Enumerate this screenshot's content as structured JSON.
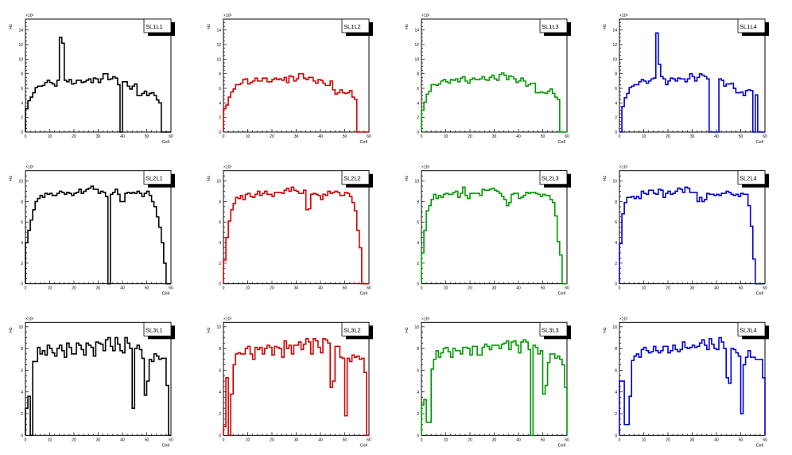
{
  "canvas": {
    "x_axis_title": "Cell",
    "y_axis_title": "Hz",
    "y_exponent": "×10³"
  },
  "colors": {
    "L1": "#000000",
    "L2": "#d00000",
    "L3": "#009900",
    "L4": "#0000cc"
  },
  "chart_data": [
    {
      "type": "bar",
      "title": "SL1L1",
      "color": "#000000",
      "xlim": [
        0,
        60
      ],
      "ylim": [
        0,
        15.5
      ],
      "xticks": [
        0,
        10,
        20,
        30,
        40,
        50,
        60
      ],
      "yticks": [
        0,
        2,
        4,
        6,
        8,
        10,
        12,
        14
      ],
      "xlabel": "Cell",
      "ylabel": "Hz",
      "yscale": "x10^3",
      "values": [
        3.2,
        4.3,
        4.8,
        5.4,
        6.1,
        6.3,
        6.3,
        6.4,
        6.8,
        7.1,
        6.8,
        6.6,
        6.3,
        7.1,
        13.0,
        12.2,
        7.1,
        6.9,
        7.2,
        6.6,
        6.7,
        7.1,
        7.1,
        6.8,
        6.9,
        7.1,
        7.3,
        6.8,
        7.4,
        7.3,
        6.8,
        7.3,
        8.0,
        8.0,
        7.2,
        7.3,
        7.6,
        7.4,
        6.5,
        0,
        6.9,
        6.9,
        6.3,
        5.9,
        6.3,
        6.6,
        5.0,
        5.0,
        5.3,
        5.6,
        5.0,
        5.3,
        5.4,
        5.0,
        4.4,
        4.0,
        0,
        0,
        0,
        0
      ]
    },
    {
      "type": "bar",
      "title": "SL1L2",
      "color": "#d00000",
      "xlim": [
        0,
        60
      ],
      "ylim": [
        0,
        15.5
      ],
      "xticks": [
        0,
        10,
        20,
        30,
        40,
        50,
        60
      ],
      "yticks": [
        0,
        2,
        4,
        6,
        8,
        10,
        12,
        14
      ],
      "xlabel": "Cell",
      "ylabel": "Hz",
      "yscale": "x10^3",
      "values": [
        3.2,
        3.7,
        4.8,
        5.5,
        5.9,
        6.5,
        6.5,
        6.7,
        7.2,
        7.3,
        6.6,
        6.8,
        7.0,
        7.4,
        7.0,
        7.0,
        7.4,
        7.4,
        6.9,
        6.9,
        7.2,
        7.4,
        7.2,
        7.3,
        7.1,
        7.5,
        6.8,
        7.7,
        7.6,
        7.0,
        7.3,
        8.0,
        8.0,
        7.4,
        7.2,
        7.5,
        7.5,
        7.0,
        6.7,
        7.2,
        7.1,
        6.7,
        6.4,
        6.4,
        7.0,
        5.8,
        5.2,
        5.4,
        5.8,
        5.4,
        5.3,
        5.4,
        5.7,
        4.8,
        4.5,
        0,
        0,
        0,
        0,
        0
      ]
    },
    {
      "type": "bar",
      "title": "SL1L3",
      "color": "#009900",
      "xlim": [
        0,
        60
      ],
      "ylim": [
        0,
        15.5
      ],
      "xticks": [
        0,
        10,
        20,
        30,
        40,
        50,
        60
      ],
      "yticks": [
        0,
        2,
        4,
        6,
        8,
        10,
        12,
        14
      ],
      "xlabel": "Cell",
      "ylabel": "Hz",
      "yscale": "x10^3",
      "values": [
        3.0,
        4.1,
        5.2,
        5.6,
        6.5,
        6.5,
        6.4,
        6.6,
        7.0,
        7.2,
        6.9,
        6.7,
        7.2,
        7.1,
        7.3,
        6.9,
        7.4,
        7.6,
        7.0,
        6.7,
        7.2,
        7.4,
        7.2,
        7.2,
        7.3,
        7.6,
        7.2,
        7.1,
        7.5,
        7.8,
        7.3,
        7.1,
        7.9,
        8.1,
        7.8,
        7.2,
        7.7,
        7.6,
        7.3,
        6.8,
        7.0,
        7.4,
        7.0,
        6.3,
        6.5,
        6.7,
        6.7,
        5.4,
        5.4,
        5.5,
        5.4,
        5.3,
        5.6,
        5.9,
        5.3,
        4.8,
        4.5,
        0,
        0,
        0
      ]
    },
    {
      "type": "bar",
      "title": "SL1L4",
      "color": "#0000cc",
      "xlim": [
        0,
        60
      ],
      "ylim": [
        0,
        15.5
      ],
      "xticks": [
        0,
        10,
        20,
        30,
        40,
        50,
        60
      ],
      "yticks": [
        0,
        2,
        4,
        6,
        8,
        10,
        12,
        14
      ],
      "xlabel": "Cell",
      "ylabel": "Hz",
      "yscale": "x10^3",
      "values": [
        0,
        3.5,
        4.7,
        5.3,
        6.1,
        6.3,
        6.5,
        6.5,
        6.9,
        7.2,
        7.0,
        6.7,
        7.0,
        7.3,
        7.4,
        13.6,
        9.3,
        7.6,
        7.3,
        6.5,
        7.0,
        7.4,
        7.3,
        7.0,
        7.4,
        7.3,
        7.3,
        6.9,
        7.3,
        8.0,
        7.6,
        7.0,
        7.5,
        8.0,
        7.8,
        7.6,
        7.3,
        0,
        0,
        0,
        0,
        7.3,
        7.1,
        6.3,
        6.6,
        6.6,
        6.7,
        6.0,
        5.4,
        5.4,
        5.5,
        5.0,
        5.7,
        5.8,
        5.7,
        0,
        5.1,
        0,
        0,
        0
      ]
    },
    {
      "type": "bar",
      "title": "SL2L1",
      "color": "#000000",
      "xlim": [
        0,
        60
      ],
      "ylim": [
        0,
        11
      ],
      "xticks": [
        0,
        10,
        20,
        30,
        40,
        50,
        60
      ],
      "yticks": [
        0,
        2,
        4,
        6,
        8,
        10
      ],
      "xlabel": "Cell",
      "ylabel": "Hz",
      "yscale": "x10^3",
      "values": [
        4.0,
        5.2,
        6.2,
        7.2,
        8.0,
        8.3,
        8.6,
        8.4,
        8.8,
        8.7,
        8.8,
        8.6,
        8.6,
        8.8,
        9.0,
        8.9,
        8.7,
        8.9,
        8.8,
        8.6,
        8.8,
        8.9,
        9.2,
        8.8,
        9.0,
        9.2,
        9.3,
        9.5,
        9.2,
        9.2,
        8.8,
        9.0,
        8.9,
        8.5,
        0,
        8.7,
        8.9,
        9.2,
        8.7,
        8.0,
        8.0,
        8.8,
        8.9,
        8.8,
        8.9,
        8.8,
        9.0,
        8.8,
        8.5,
        8.8,
        9.0,
        8.6,
        8.0,
        7.5,
        6.5,
        5.5,
        4.0,
        2.0,
        0,
        0
      ]
    },
    {
      "type": "bar",
      "title": "SL2L2",
      "color": "#d00000",
      "xlim": [
        0,
        60
      ],
      "ylim": [
        0,
        11
      ],
      "xticks": [
        0,
        10,
        20,
        30,
        40,
        50,
        60
      ],
      "yticks": [
        0,
        2,
        4,
        6,
        8,
        10
      ],
      "xlabel": "Cell",
      "ylabel": "Hz",
      "yscale": "x10^3",
      "values": [
        2.3,
        4.5,
        6.1,
        7.2,
        7.8,
        8.4,
        8.3,
        8.6,
        8.2,
        8.7,
        8.8,
        8.5,
        8.4,
        8.7,
        9.0,
        8.6,
        8.8,
        9.0,
        8.7,
        8.7,
        8.5,
        8.9,
        8.9,
        8.9,
        8.8,
        9.1,
        9.3,
        9.0,
        9.4,
        9.1,
        9.0,
        8.8,
        8.8,
        9.1,
        7.2,
        7.3,
        8.7,
        8.8,
        8.7,
        8.6,
        8.2,
        8.7,
        8.6,
        9.0,
        8.8,
        8.9,
        9.0,
        8.9,
        8.6,
        8.6,
        8.9,
        8.8,
        8.5,
        7.9,
        7.1,
        5.2,
        3.5,
        0,
        0,
        0
      ]
    },
    {
      "type": "bar",
      "title": "SL2L3",
      "color": "#009900",
      "xlim": [
        0,
        60
      ],
      "ylim": [
        0,
        11
      ],
      "xticks": [
        0,
        10,
        20,
        30,
        40,
        50,
        60
      ],
      "yticks": [
        0,
        2,
        4,
        6,
        8,
        10
      ],
      "xlabel": "Cell",
      "ylabel": "Hz",
      "yscale": "x10^3",
      "values": [
        3.0,
        5.2,
        7.1,
        7.6,
        8.2,
        8.7,
        8.3,
        8.6,
        8.4,
        8.7,
        8.8,
        8.7,
        8.7,
        8.9,
        9.0,
        8.4,
        8.8,
        9.4,
        8.6,
        8.3,
        8.8,
        8.8,
        8.8,
        8.8,
        8.6,
        9.2,
        9.1,
        9.1,
        9.2,
        9.3,
        9.1,
        9.0,
        8.8,
        8.5,
        8.2,
        7.6,
        7.9,
        8.7,
        8.8,
        8.8,
        8.3,
        8.4,
        8.6,
        8.9,
        8.8,
        8.9,
        8.9,
        8.8,
        8.7,
        8.5,
        8.7,
        8.6,
        8.6,
        8.2,
        7.9,
        6.6,
        4.1,
        2.8,
        0,
        0
      ]
    },
    {
      "type": "bar",
      "title": "SL2L4",
      "color": "#0000cc",
      "xlim": [
        0,
        60
      ],
      "ylim": [
        0,
        11
      ],
      "xticks": [
        0,
        10,
        20,
        30,
        40,
        50,
        60
      ],
      "yticks": [
        0,
        2,
        4,
        6,
        8,
        10
      ],
      "xlabel": "Cell",
      "ylabel": "Hz",
      "yscale": "x10^3",
      "values": [
        3.9,
        6.8,
        7.9,
        8.4,
        8.4,
        8.5,
        8.3,
        8.5,
        8.3,
        9.0,
        8.8,
        8.7,
        9.1,
        9.1,
        8.8,
        8.7,
        9.2,
        9.1,
        8.4,
        8.8,
        9.0,
        8.7,
        8.8,
        9.0,
        9.3,
        9.2,
        8.9,
        9.4,
        9.3,
        8.9,
        8.9,
        8.9,
        8.0,
        8.4,
        8.0,
        8.2,
        8.8,
        8.7,
        8.7,
        8.6,
        8.7,
        8.6,
        8.8,
        8.8,
        9.0,
        8.9,
        8.7,
        8.6,
        8.7,
        8.5,
        8.8,
        8.7,
        8.7,
        7.6,
        5.6,
        2.4,
        0,
        0,
        0,
        0
      ]
    },
    {
      "type": "bar",
      "title": "SL3L1",
      "color": "#000000",
      "xlim": [
        0,
        60
      ],
      "ylim": [
        0,
        10.4
      ],
      "xticks": [
        0,
        10,
        20,
        30,
        40,
        50,
        60
      ],
      "yticks": [
        0,
        2,
        4,
        6,
        8,
        10
      ],
      "xlabel": "Cell",
      "ylabel": "Hz",
      "yscale": "x10^3",
      "values": [
        2.5,
        3.6,
        0,
        6.8,
        6.8,
        8.1,
        7.5,
        7.8,
        7.4,
        8.3,
        8.0,
        7.6,
        7.3,
        8.0,
        8.3,
        7.8,
        7.2,
        8.5,
        8.1,
        7.5,
        7.5,
        8.5,
        8.3,
        7.9,
        7.4,
        8.5,
        8.3,
        8.1,
        7.3,
        8.6,
        8.5,
        8.4,
        7.8,
        8.8,
        9.0,
        8.2,
        7.8,
        9.0,
        8.4,
        7.8,
        7.6,
        9.0,
        8.5,
        8.0,
        2.5,
        8.0,
        8.3,
        7.9,
        7.1,
        3.7,
        5.0,
        7.0,
        6.8,
        7.5,
        7.3,
        7.0,
        7.1,
        7.1,
        4.6,
        0
      ]
    },
    {
      "type": "bar",
      "title": "SL3L2",
      "color": "#d00000",
      "xlim": [
        0,
        60
      ],
      "ylim": [
        0,
        10.4
      ],
      "xticks": [
        0,
        10,
        20,
        30,
        40,
        50,
        60
      ],
      "yticks": [
        0,
        2,
        4,
        6,
        8,
        10
      ],
      "xlabel": "Cell",
      "ylabel": "Hz",
      "yscale": "x10^3",
      "values": [
        0.8,
        5.3,
        0,
        3.8,
        6.5,
        7.5,
        7.6,
        7.5,
        7.5,
        8.0,
        8.2,
        7.5,
        7.0,
        8.1,
        7.9,
        8.1,
        7.5,
        8.0,
        8.3,
        8.1,
        7.4,
        8.2,
        8.1,
        8.0,
        7.2,
        8.7,
        8.0,
        8.3,
        7.5,
        8.3,
        8.3,
        8.6,
        7.9,
        8.4,
        8.9,
        8.6,
        7.5,
        8.9,
        8.7,
        8.1,
        7.6,
        8.9,
        8.8,
        8.5,
        4.4,
        5.0,
        8.2,
        8.2,
        7.2,
        7.1,
        1.8,
        7.1,
        6.8,
        7.4,
        7.2,
        7.3,
        7.0,
        7.1,
        5.8,
        0
      ]
    },
    {
      "type": "bar",
      "title": "SL3L3",
      "color": "#009900",
      "xlim": [
        0,
        60
      ],
      "ylim": [
        0,
        10.4
      ],
      "xticks": [
        0,
        10,
        20,
        30,
        40,
        50,
        60
      ],
      "yticks": [
        0,
        2,
        4,
        6,
        8,
        10
      ],
      "xlabel": "Cell",
      "ylabel": "Hz",
      "yscale": "x10^3",
      "values": [
        2.8,
        3.3,
        1.2,
        1.2,
        6.1,
        7.0,
        7.8,
        7.2,
        7.6,
        8.0,
        8.1,
        7.7,
        7.2,
        8.0,
        7.8,
        7.8,
        7.5,
        8.1,
        8.1,
        8.0,
        7.4,
        8.2,
        8.2,
        7.4,
        7.4,
        8.1,
        8.4,
        8.2,
        7.9,
        8.3,
        8.3,
        8.3,
        8.0,
        8.4,
        8.5,
        8.7,
        7.9,
        8.6,
        8.7,
        8.3,
        7.6,
        8.6,
        8.8,
        8.6,
        7.9,
        0,
        8.3,
        8.1,
        7.5,
        7.8,
        3.8,
        4.6,
        6.7,
        7.5,
        7.5,
        7.1,
        7.3,
        7.0,
        6.5,
        4.4
      ]
    },
    {
      "type": "bar",
      "title": "SL3L4",
      "color": "#0000cc",
      "xlim": [
        0,
        60
      ],
      "ylim": [
        0,
        10.4
      ],
      "xticks": [
        0,
        10,
        20,
        30,
        40,
        50,
        60
      ],
      "yticks": [
        0,
        2,
        4,
        6,
        8,
        10
      ],
      "xlabel": "Cell",
      "ylabel": "Hz",
      "yscale": "x10^3",
      "values": [
        5.0,
        5.0,
        1.0,
        1.0,
        3.6,
        6.9,
        7.3,
        7.5,
        7.2,
        7.9,
        8.1,
        7.8,
        7.6,
        7.7,
        8.2,
        7.8,
        7.6,
        7.8,
        8.2,
        8.2,
        7.6,
        7.8,
        8.3,
        7.9,
        7.7,
        7.9,
        8.6,
        8.1,
        8.0,
        8.1,
        8.3,
        8.1,
        8.2,
        8.5,
        8.8,
        8.3,
        7.9,
        8.9,
        8.4,
        8.0,
        7.9,
        9.0,
        8.6,
        8.0,
        5.3,
        4.8,
        8.0,
        7.9,
        7.6,
        7.3,
        2.0,
        6.5,
        7.2,
        7.8,
        7.2,
        7.2,
        7.0,
        7.0,
        7.0,
        5.3
      ]
    }
  ]
}
